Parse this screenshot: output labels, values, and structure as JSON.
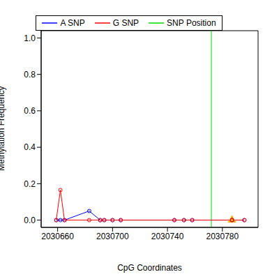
{
  "chart_data": {
    "type": "line",
    "x_label": "CpG Coordinates",
    "y_label": "Methylation Frequency",
    "x": [
      2030659,
      2030662,
      2030665,
      2030683,
      2030691,
      2030694,
      2030700,
      2030706,
      2030745,
      2030752,
      2030758,
      2030787,
      2030796
    ],
    "series": [
      {
        "name": "A SNP",
        "color": "#0000ff",
        "marker": "circle",
        "values": [
          0,
          0,
          0,
          0.05,
          0,
          0,
          0,
          0,
          0,
          0,
          0,
          0,
          0
        ]
      },
      {
        "name": "G SNP",
        "color": "#ff0000",
        "marker": "circle",
        "values": [
          0,
          0.165,
          0,
          0,
          0,
          0,
          0,
          0,
          0,
          0,
          0,
          0,
          0
        ]
      }
    ],
    "snp_position": {
      "name": "SNP Position",
      "x": 2030772,
      "color": "#00dd00"
    },
    "highlight": {
      "x": 2030787,
      "y": 0,
      "color": "#ffa500",
      "marker": "triangle"
    },
    "xlim": [
      2030648,
      2030806
    ],
    "ylim": [
      -0.04,
      1.04
    ],
    "xticks": [
      2030660,
      2030700,
      2030740,
      2030780
    ],
    "yticks": [
      {
        "value": 0,
        "label": "0.0"
      },
      {
        "value": 0.2,
        "label": "0.2"
      },
      {
        "value": 0.4,
        "label": "0.4"
      },
      {
        "value": 0.6,
        "label": "0.6"
      },
      {
        "value": 0.8,
        "label": "0.8"
      },
      {
        "value": 1.0,
        "label": "1.0"
      }
    ],
    "legend": "top"
  }
}
